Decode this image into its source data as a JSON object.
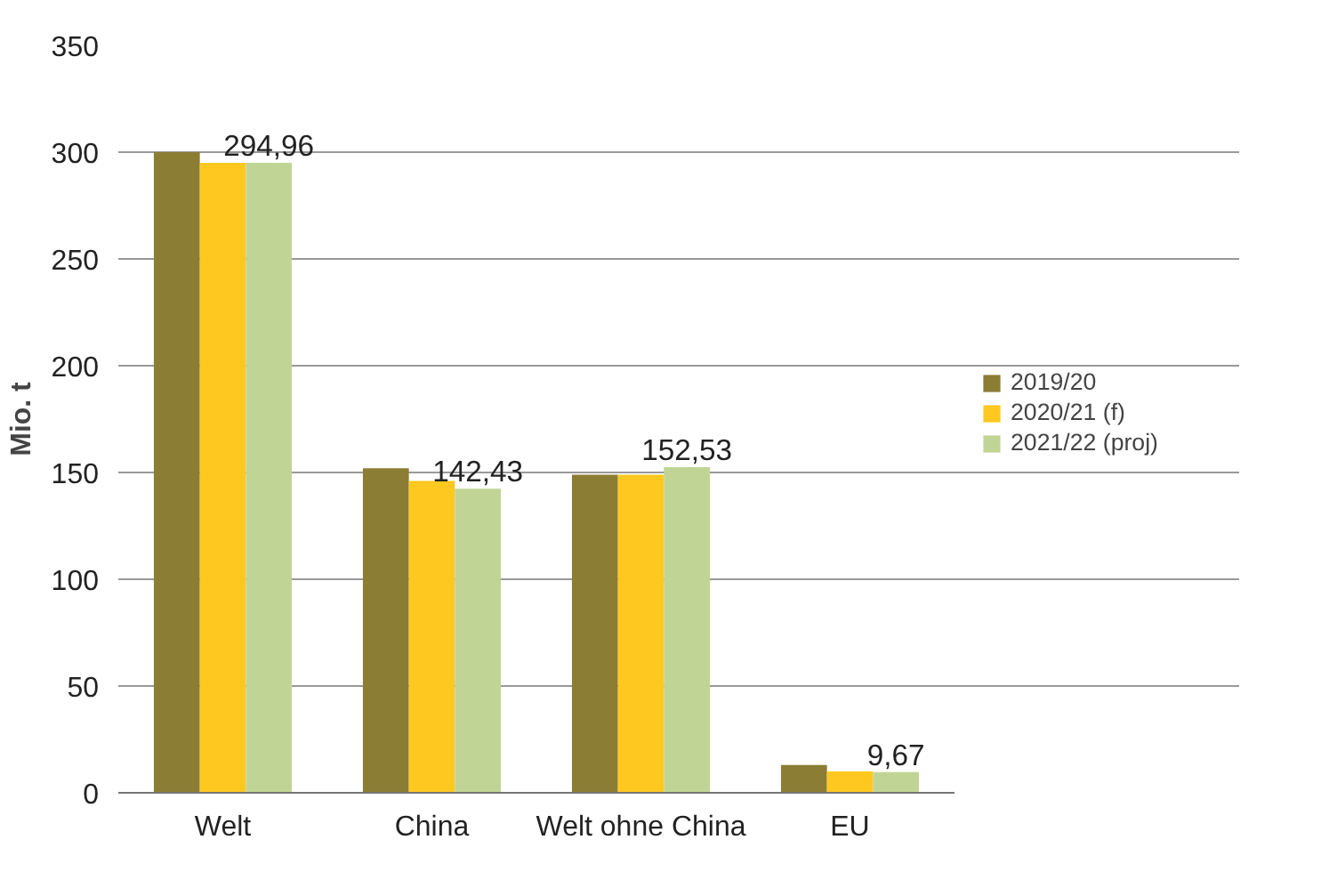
{
  "chart_data": {
    "type": "bar",
    "ylabel": "Mio. t",
    "categories": [
      "Welt",
      "China",
      "Welt ohne China",
      "EU"
    ],
    "series": [
      {
        "name": "2019/20",
        "color": "#8b7d33",
        "values": [
          300,
          152,
          149,
          13
        ]
      },
      {
        "name": "2020/21 (f)",
        "color": "#fec820",
        "values": [
          295,
          146,
          149,
          10
        ]
      },
      {
        "name": "2021/22 (proj)",
        "color": "#c0d595",
        "values": [
          294.96,
          142.43,
          152.53,
          9.67
        ],
        "value_labels": [
          "294,96",
          "142,43",
          "152,53",
          "9,67"
        ]
      }
    ],
    "ylim": [
      0,
      350
    ],
    "yticks": [
      0,
      50,
      100,
      150,
      200,
      250,
      300,
      350
    ],
    "grid": "y",
    "legend": "right"
  }
}
